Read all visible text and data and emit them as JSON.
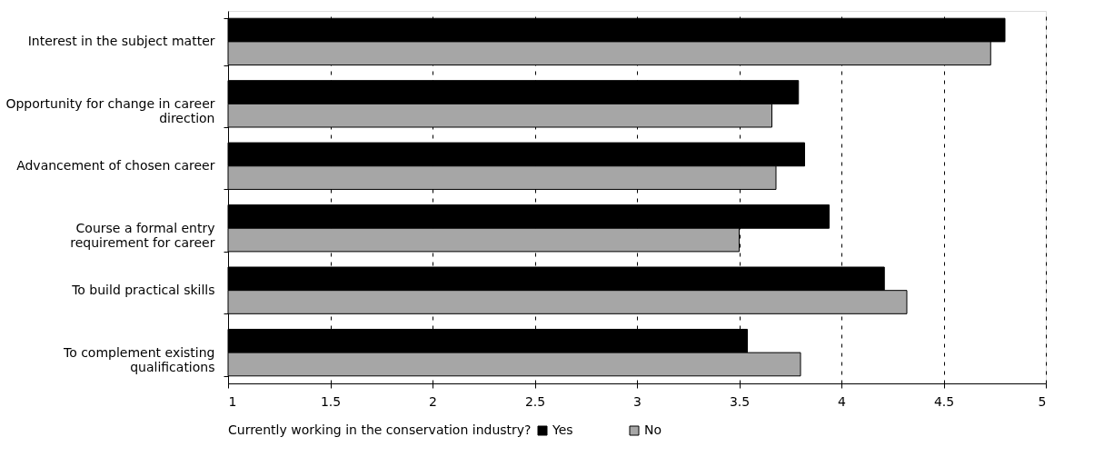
{
  "chart_data": {
    "type": "bar",
    "orientation": "horizontal",
    "legend_title": "Currently working in the conservation industry?",
    "categories": [
      "Interest in the subject matter",
      "Opportunity for change in career direction",
      "Advancement of chosen career",
      "Course a formal entry requirement for career",
      "To build practical skills",
      "To complement existing qualifications"
    ],
    "series": [
      {
        "name": "Yes",
        "color": "#000000",
        "values": [
          4.8,
          3.79,
          3.82,
          3.94,
          4.21,
          3.54
        ]
      },
      {
        "name": "No",
        "color": "#a6a6a6",
        "values": [
          4.73,
          3.66,
          3.68,
          3.5,
          4.32,
          3.8
        ]
      }
    ],
    "xlim": [
      1,
      5
    ],
    "xticks": [
      1,
      1.5,
      2,
      2.5,
      3,
      3.5,
      4,
      4.5,
      5
    ],
    "grid": "x",
    "legend": "bottom"
  }
}
